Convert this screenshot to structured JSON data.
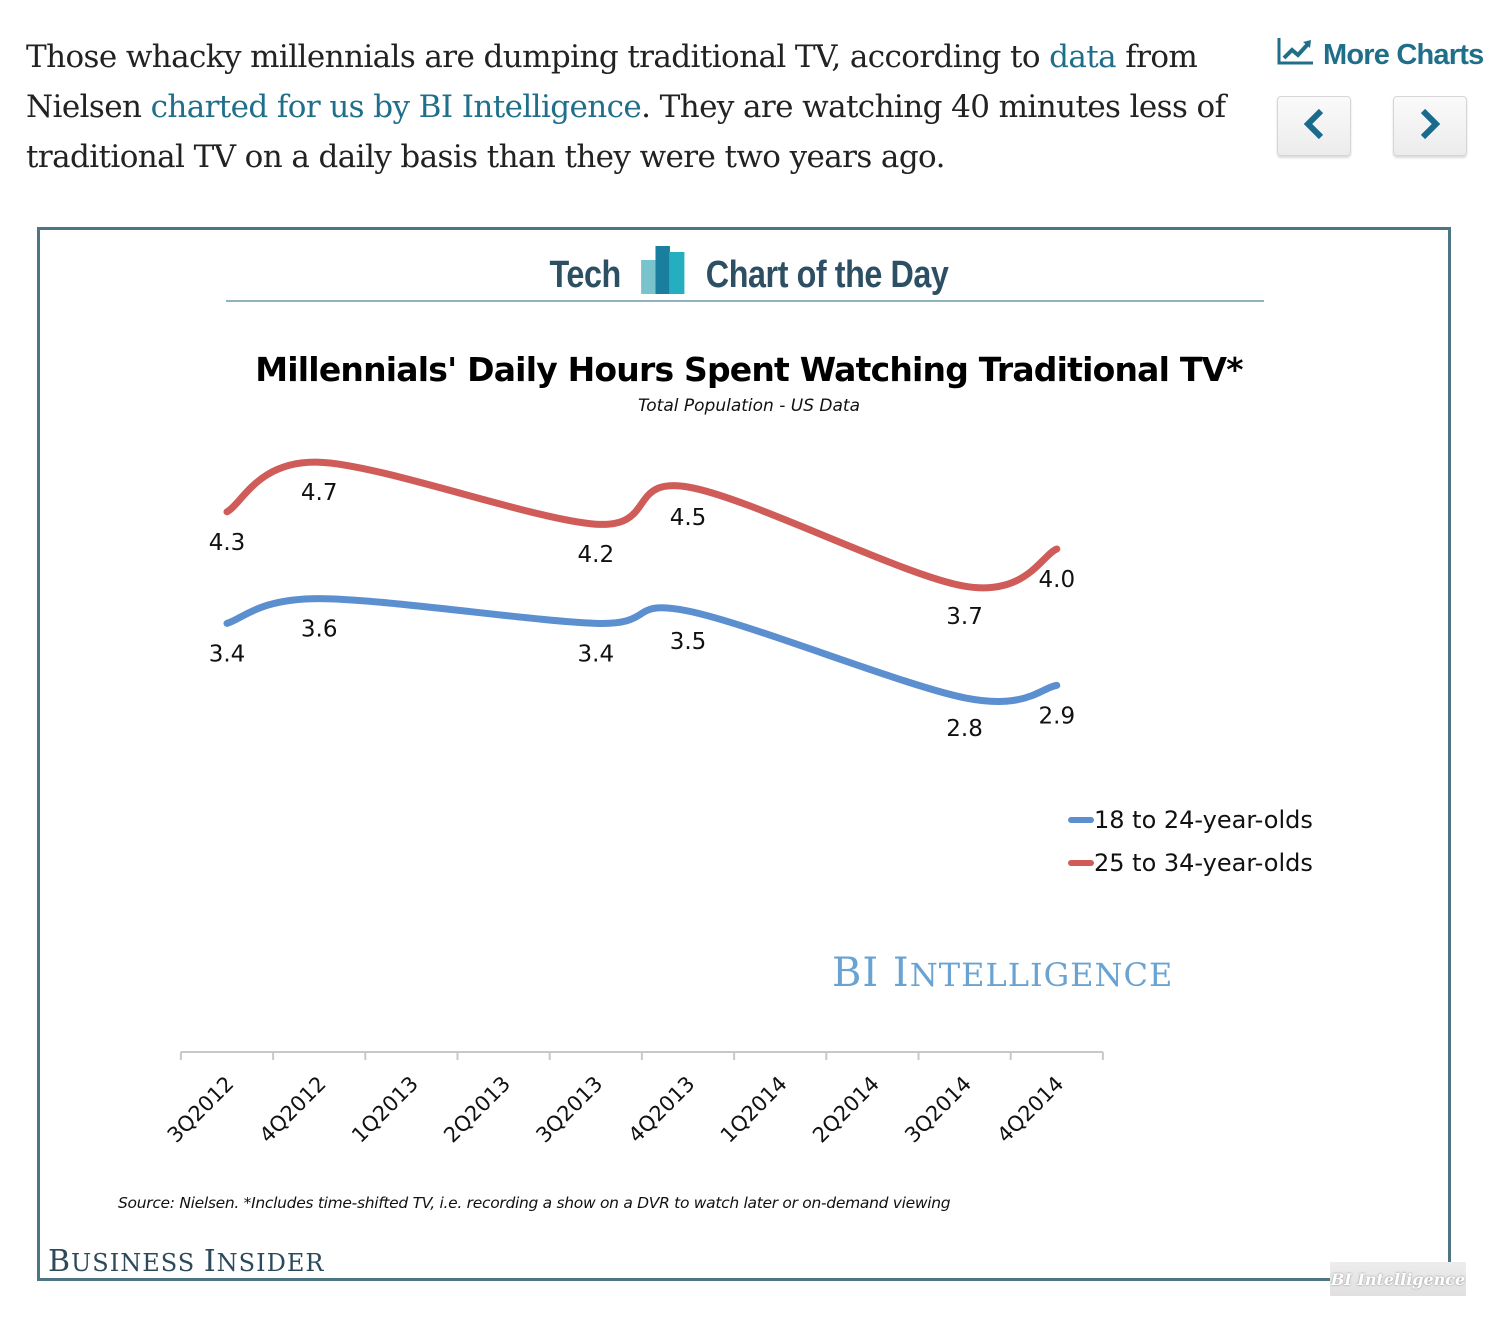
{
  "article": {
    "intro_before_link1": "Those whacky millennials are dumping traditional TV, according to ",
    "link1": "data",
    "intro_between": " from Nielsen ",
    "link2": "charted for us by BI Intelligence",
    "intro_after": ". They are watching 40 minutes less of traditional TV on a daily basis than they were two years ago."
  },
  "controls": {
    "more_charts_label": "More Charts",
    "more_charts_icon": "line-chart-icon",
    "prev_icon": "chevron-left-icon",
    "next_icon": "chevron-right-icon",
    "accent_color": "#1f6f8b"
  },
  "banner": {
    "left": "Tech",
    "right": "Chart of the Day",
    "icon": "bar-chart-logo-icon"
  },
  "chart_data": {
    "type": "line",
    "title": "Millennials' Daily Hours Spent Watching Traditional TV*",
    "subtitle": "Total Population - US Data",
    "xlabel": "",
    "ylabel": "",
    "categories": [
      "3Q2012",
      "4Q2012",
      "1Q2013",
      "2Q2013",
      "3Q2013",
      "4Q2013",
      "1Q2014",
      "2Q2014",
      "3Q2014",
      "4Q2014"
    ],
    "series": [
      {
        "name": "18 to 24-year-olds",
        "color": "#5b8fcf",
        "values": [
          3.4,
          3.6,
          null,
          null,
          3.4,
          3.5,
          null,
          null,
          2.8,
          2.9
        ],
        "labels": [
          "3.4",
          "3.6",
          null,
          null,
          "3.4",
          "3.5",
          null,
          null,
          "2.8",
          "2.9"
        ]
      },
      {
        "name": "25 to 34-year-olds",
        "color": "#cf5c58",
        "values": [
          4.3,
          4.7,
          null,
          null,
          4.2,
          4.5,
          null,
          null,
          3.7,
          4.0
        ],
        "labels": [
          "4.3",
          "4.7",
          null,
          null,
          "4.2",
          "4.5",
          null,
          null,
          "3.7",
          "4.0"
        ]
      }
    ],
    "smoothed": true,
    "y_axis_visible": false,
    "grid": false,
    "legend_position": "right",
    "source": "Source: Nielsen. *Includes time-shifted TV, i.e. recording a show on a DVR to watch later or on-demand viewing"
  },
  "branding": {
    "watermark_first": "BI ",
    "watermark_cap": "I",
    "watermark_rest": "NTELLIGENCE",
    "publisher_cap1": "B",
    "publisher_rest1": "USINESS ",
    "publisher_cap2": "I",
    "publisher_rest2": "NSIDER",
    "badge": "BI Intelligence"
  }
}
